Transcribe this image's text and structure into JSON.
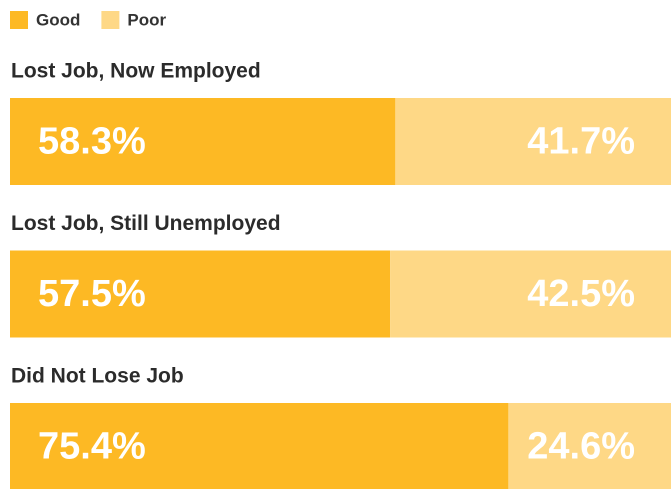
{
  "chart_data": {
    "type": "stacked_bar_horizontal",
    "categories": [
      "Lost Job, Now Employed",
      "Lost Job, Still Unemployed",
      "Did Not Lose Job"
    ],
    "series": [
      {
        "name": "Good",
        "color": "#fdb924",
        "values": [
          58.3,
          57.5,
          75.4
        ],
        "value_labels": [
          "58.3%",
          "57.5%",
          "75.4%"
        ]
      },
      {
        "name": "Poor",
        "color": "#fed886",
        "values": [
          41.7,
          42.5,
          24.6
        ],
        "value_labels": [
          "41.7%",
          "42.5%",
          "24.6%"
        ]
      }
    ],
    "xlim": [
      0,
      100
    ],
    "legend": "top-left"
  }
}
